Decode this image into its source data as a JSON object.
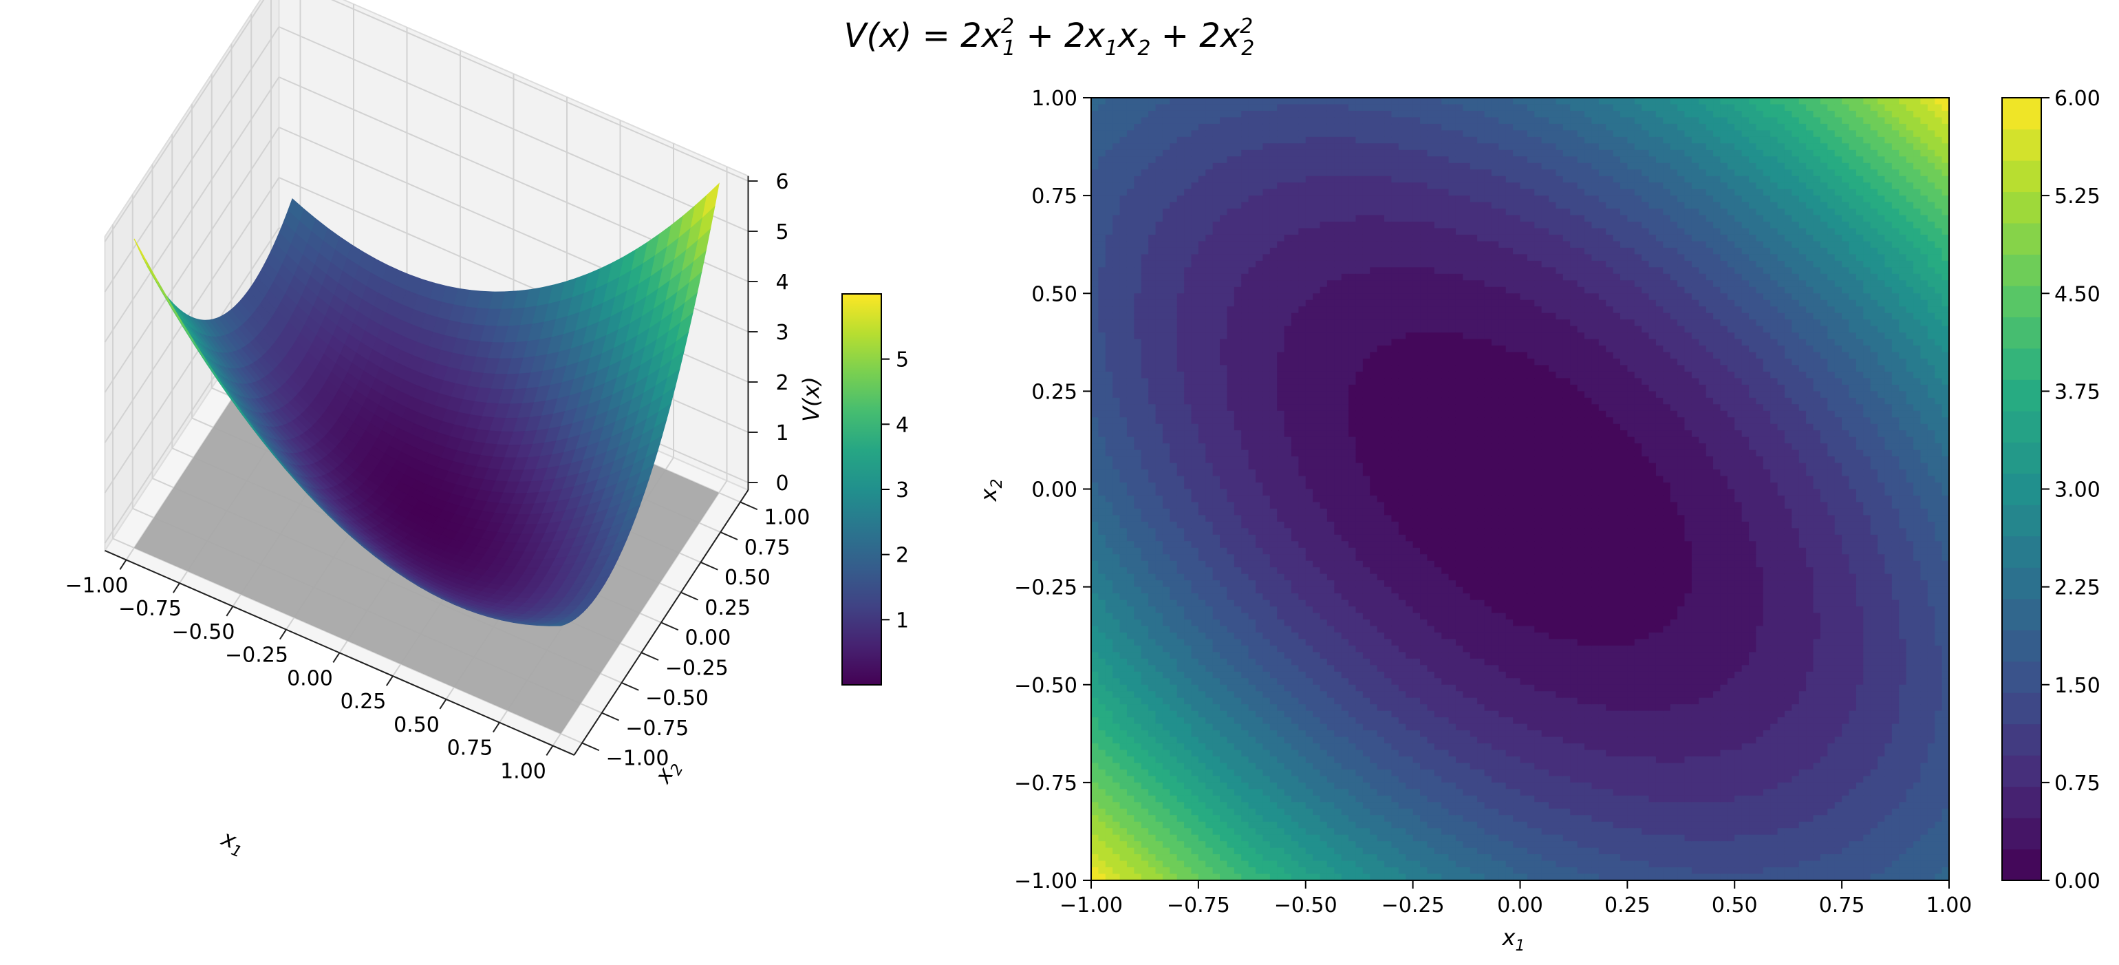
{
  "figure": {
    "title_parts": [
      "V(x) = 2x",
      "1",
      "2",
      " + 2x",
      "1",
      "x",
      "2",
      " + 2x",
      "2",
      "2"
    ]
  },
  "chart_data": [
    {
      "type": "surface",
      "function": "2*x1^2 + 2*x1*x2 + 2*x2^2",
      "colormap": "viridis",
      "x": {
        "min": -1.0,
        "max": 1.0,
        "ticks": [
          "−1.00",
          "−0.75",
          "−0.50",
          "−0.25",
          "0.00",
          "0.25",
          "0.50",
          "0.75",
          "1.00"
        ]
      },
      "y": {
        "min": -1.0,
        "max": 1.0,
        "ticks": [
          "−1.00",
          "−0.75",
          "−0.50",
          "−0.25",
          "0.00",
          "0.25",
          "0.50",
          "0.75",
          "1.00"
        ]
      },
      "z": {
        "min": 0,
        "max": 6,
        "ticks": [
          "0",
          "1",
          "2",
          "3",
          "4",
          "5",
          "6"
        ]
      },
      "xlabel_parts": [
        "x",
        "1"
      ],
      "ylabel_parts": [
        "x",
        "2"
      ],
      "colorbar": {
        "min": 0,
        "max": 6,
        "label_parts": [
          "V(x)"
        ],
        "ticks": [
          "1",
          "2",
          "3",
          "4",
          "5"
        ]
      }
    },
    {
      "type": "contourf",
      "function": "2*x1^2 + 2*x1*x2 + 2*x2^2",
      "colormap": "viridis",
      "levels": 25,
      "x": {
        "min": -1.0,
        "max": 1.0,
        "ticks": [
          "−1.00",
          "−0.75",
          "−0.50",
          "−0.25",
          "0.00",
          "0.25",
          "0.50",
          "0.75",
          "1.00"
        ]
      },
      "y": {
        "min": -1.0,
        "max": 1.0,
        "ticks": [
          "−1.00",
          "−0.75",
          "−0.50",
          "−0.25",
          "0.00",
          "0.25",
          "0.50",
          "0.75",
          "1.00"
        ]
      },
      "xlabel_parts": [
        "x",
        "1"
      ],
      "ylabel_parts": [
        "x",
        "2"
      ],
      "colorbar": {
        "min": 0,
        "max": 6,
        "ticks": [
          "0.00",
          "0.75",
          "1.50",
          "2.25",
          "3.00",
          "3.75",
          "4.50",
          "5.25",
          "6.00"
        ]
      }
    }
  ]
}
